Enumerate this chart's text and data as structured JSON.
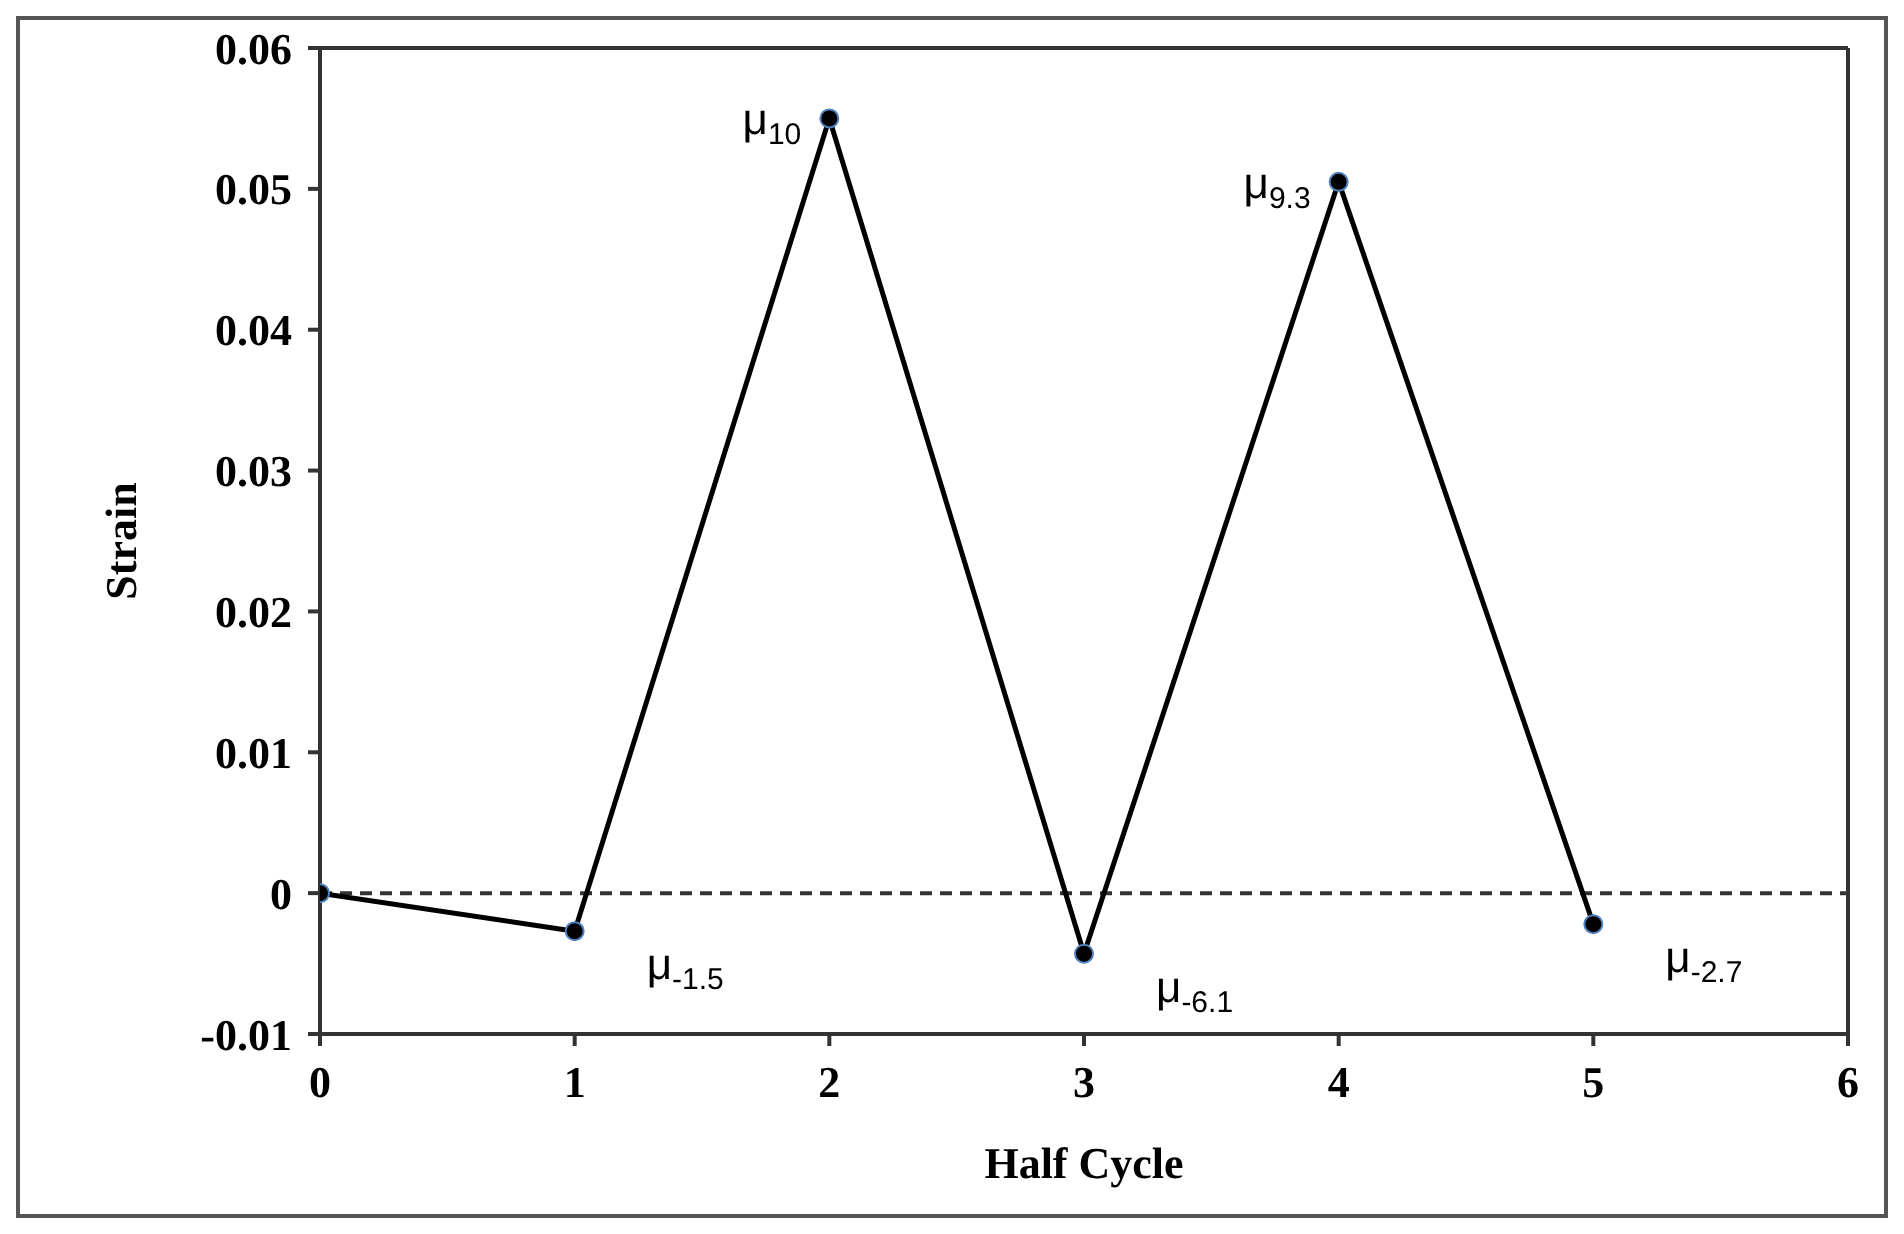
{
  "chart_data": {
    "type": "line",
    "xlabel": "Half Cycle",
    "ylabel": "Strain",
    "x": [
      0,
      1,
      2,
      3,
      4,
      5
    ],
    "series": [
      {
        "color": "#000000",
        "values": [
          0,
          -0.0027,
          0.055,
          -0.0043,
          0.0505,
          -0.0022
        ]
      }
    ],
    "xlim": [
      0,
      6
    ],
    "xticks": [
      0,
      1,
      2,
      3,
      4,
      5,
      6
    ],
    "ylim": [
      -0.01,
      0.06
    ],
    "yticks": [
      -0.01,
      0,
      0.01,
      0.02,
      0.03,
      0.04,
      0.05,
      0.06
    ],
    "grid": false,
    "legend": false,
    "marker": "circle",
    "line_style": "solid",
    "ref_lines": [
      {
        "axis": "y",
        "value": 0,
        "color": "#333333",
        "line_style": "dashed"
      }
    ],
    "annotations": [
      {
        "text": "μ$_{-1.5}$",
        "x": 1,
        "y": -0.0027
      },
      {
        "text": "μ$_{10}$",
        "x": 2,
        "y": 0.055
      },
      {
        "text": "μ$_{-6.1}$",
        "x": 3,
        "y": -0.0043
      },
      {
        "text": "μ$_{9.3}$",
        "x": 4,
        "y": 0.0505
      },
      {
        "text": "μ$_{-2.7}$",
        "x": 5,
        "y": -0.0022
      }
    ]
  }
}
